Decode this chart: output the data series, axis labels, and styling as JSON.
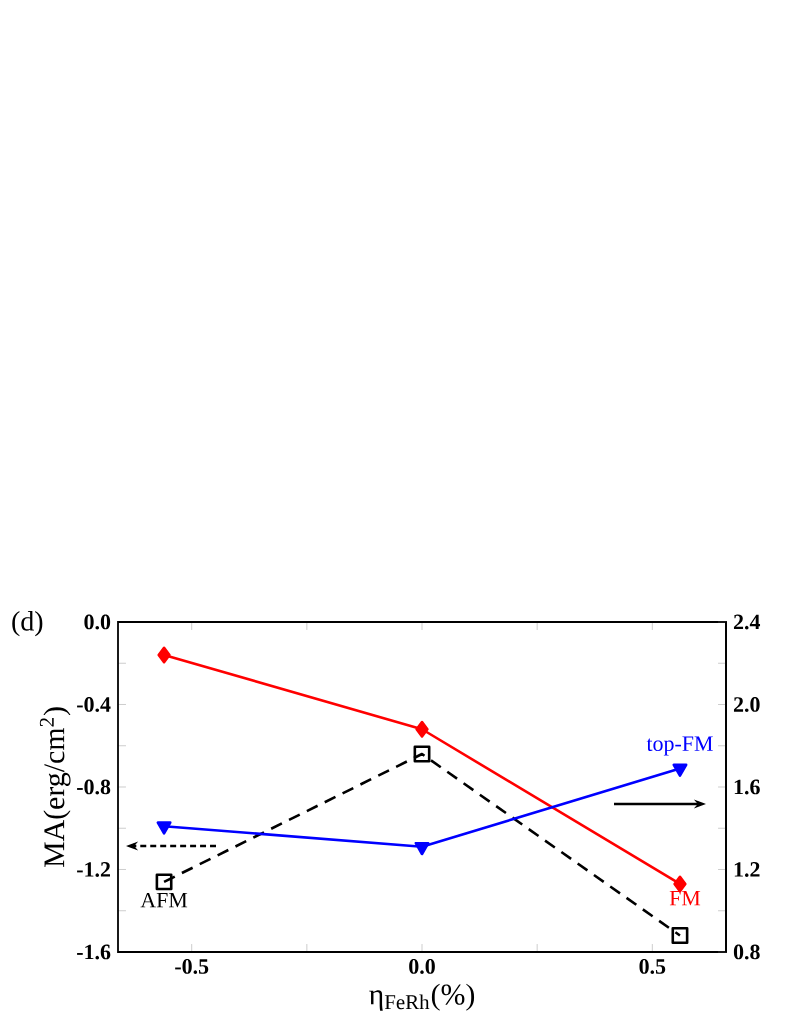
{
  "chart_data": {
    "type": "line",
    "x": [
      -0.56,
      0.0,
      0.56
    ],
    "xlabel": "η$_{FeRh}$(%)",
    "ylabel": "MA(erg/cm$^{2}$)",
    "annotations": [
      "(d)"
    ],
    "series": [
      {
        "name": "AFM",
        "color": "#000000",
        "marker": "square",
        "line_style": "dashed",
        "values": [
          -1.26,
          -0.64,
          -1.52
        ]
      },
      {
        "name": "FM",
        "color": "#ff0000",
        "marker": "diamond",
        "line_style": "solid",
        "axis": "y2",
        "values": [
          2.24,
          1.88,
          1.13
        ]
      },
      {
        "name": "top-FM",
        "color": "#0000ff",
        "marker": "triangle",
        "line_style": "solid",
        "axis": "y2",
        "values": [
          1.41,
          1.31,
          1.69
        ]
      }
    ],
    "xlim": [
      -0.66,
      0.66
    ],
    "xticks": [
      -0.5,
      {
        "value": -0.25,
        "label": null
      },
      {
        "value": 0,
        "label": "0.0"
      },
      {
        "value": 0.25,
        "label": null
      },
      0.5
    ],
    "ylim": [
      -1.6,
      0.0
    ],
    "yticks": [
      -1.6,
      {
        "value": -1.4,
        "label": null
      },
      -1.2,
      {
        "value": -1.0,
        "label": null
      },
      -0.8,
      {
        "value": -0.6,
        "label": null
      },
      -0.4,
      {
        "value": -0.2,
        "label": null
      },
      {
        "value": 0,
        "label": "0.0"
      }
    ],
    "y2lim": [
      0.8,
      2.4
    ],
    "y2ticks": [
      0.8,
      {
        "value": 1.0,
        "label": null
      },
      1.2,
      {
        "value": 1.4,
        "label": null
      },
      1.6,
      {
        "value": 1.8,
        "label": null
      },
      {
        "value": 2.0,
        "label": "2.0"
      },
      {
        "value": 2.2,
        "label": null
      },
      2.4
    ]
  }
}
